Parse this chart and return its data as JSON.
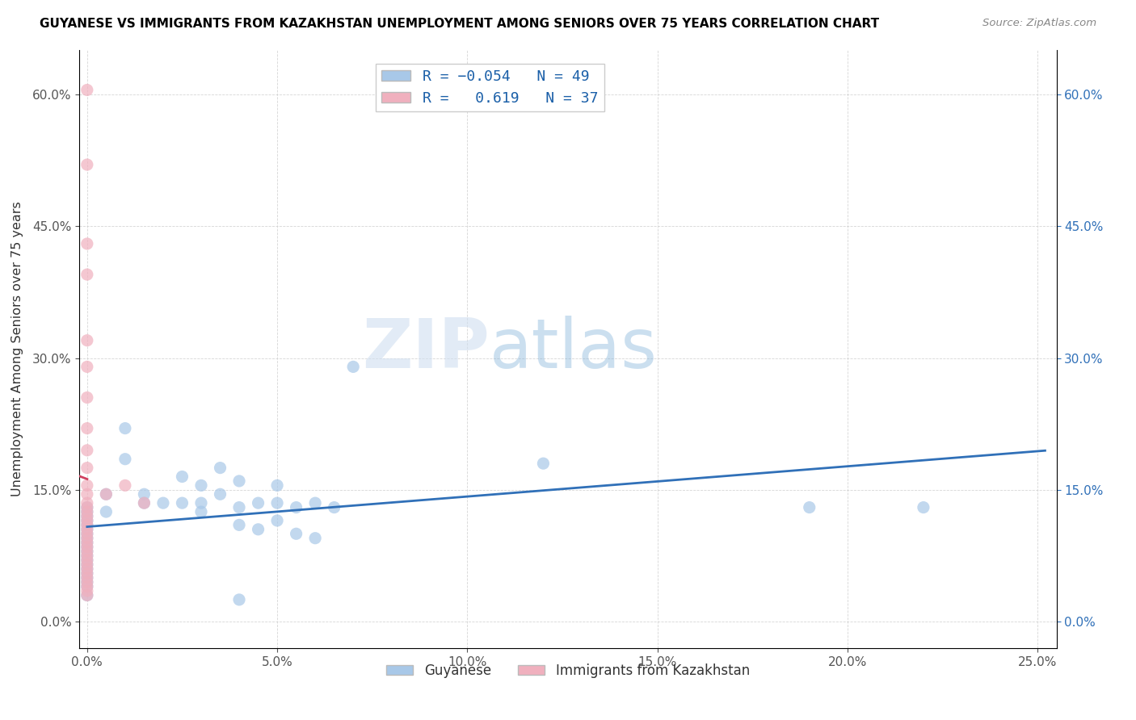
{
  "title": "GUYANESE VS IMMIGRANTS FROM KAZAKHSTAN UNEMPLOYMENT AMONG SENIORS OVER 75 YEARS CORRELATION CHART",
  "source": "Source: ZipAtlas.com",
  "ylabel": "Unemployment Among Seniors over 75 years",
  "xlim": [
    -0.002,
    0.255
  ],
  "ylim": [
    -0.03,
    0.65
  ],
  "xticks": [
    0.0,
    0.05,
    0.1,
    0.15,
    0.2,
    0.25
  ],
  "xticklabels": [
    "0.0%",
    "5.0%",
    "10.0%",
    "15.0%",
    "20.0%",
    "25.0%"
  ],
  "yticks": [
    0.0,
    0.15,
    0.3,
    0.45,
    0.6
  ],
  "yticklabels": [
    "0.0%",
    "15.0%",
    "30.0%",
    "45.0%",
    "60.0%"
  ],
  "legend_bottom": [
    "Guyanese",
    "Immigrants from Kazakhstan"
  ],
  "blue_color": "#a8c8e8",
  "pink_color": "#f0b0be",
  "blue_line_color": "#3070b8",
  "pink_line_color": "#d04060",
  "watermark_zip": "ZIP",
  "watermark_atlas": "atlas",
  "blue_scatter": [
    [
      0.0,
      0.13
    ],
    [
      0.0,
      0.125
    ],
    [
      0.0,
      0.12
    ],
    [
      0.0,
      0.115
    ],
    [
      0.0,
      0.11
    ],
    [
      0.0,
      0.105
    ],
    [
      0.0,
      0.1
    ],
    [
      0.0,
      0.095
    ],
    [
      0.0,
      0.09
    ],
    [
      0.0,
      0.085
    ],
    [
      0.0,
      0.08
    ],
    [
      0.0,
      0.075
    ],
    [
      0.0,
      0.07
    ],
    [
      0.0,
      0.065
    ],
    [
      0.0,
      0.06
    ],
    [
      0.0,
      0.055
    ],
    [
      0.0,
      0.05
    ],
    [
      0.0,
      0.045
    ],
    [
      0.0,
      0.04
    ],
    [
      0.0,
      0.03
    ],
    [
      0.005,
      0.145
    ],
    [
      0.005,
      0.125
    ],
    [
      0.01,
      0.22
    ],
    [
      0.01,
      0.185
    ],
    [
      0.015,
      0.145
    ],
    [
      0.015,
      0.135
    ],
    [
      0.02,
      0.135
    ],
    [
      0.025,
      0.165
    ],
    [
      0.025,
      0.135
    ],
    [
      0.03,
      0.155
    ],
    [
      0.03,
      0.135
    ],
    [
      0.03,
      0.125
    ],
    [
      0.035,
      0.175
    ],
    [
      0.035,
      0.145
    ],
    [
      0.04,
      0.16
    ],
    [
      0.04,
      0.13
    ],
    [
      0.04,
      0.11
    ],
    [
      0.045,
      0.135
    ],
    [
      0.045,
      0.105
    ],
    [
      0.05,
      0.155
    ],
    [
      0.05,
      0.135
    ],
    [
      0.05,
      0.115
    ],
    [
      0.055,
      0.13
    ],
    [
      0.055,
      0.1
    ],
    [
      0.06,
      0.135
    ],
    [
      0.06,
      0.095
    ],
    [
      0.065,
      0.13
    ],
    [
      0.07,
      0.29
    ],
    [
      0.12,
      0.18
    ],
    [
      0.19,
      0.13
    ],
    [
      0.22,
      0.13
    ],
    [
      0.04,
      0.025
    ]
  ],
  "pink_scatter": [
    [
      0.0,
      0.605
    ],
    [
      0.0,
      0.52
    ],
    [
      0.0,
      0.43
    ],
    [
      0.0,
      0.395
    ],
    [
      0.0,
      0.32
    ],
    [
      0.0,
      0.29
    ],
    [
      0.0,
      0.255
    ],
    [
      0.0,
      0.22
    ],
    [
      0.0,
      0.195
    ],
    [
      0.0,
      0.175
    ],
    [
      0.0,
      0.155
    ],
    [
      0.0,
      0.145
    ],
    [
      0.0,
      0.135
    ],
    [
      0.0,
      0.13
    ],
    [
      0.0,
      0.125
    ],
    [
      0.0,
      0.12
    ],
    [
      0.0,
      0.115
    ],
    [
      0.0,
      0.11
    ],
    [
      0.0,
      0.105
    ],
    [
      0.0,
      0.1
    ],
    [
      0.0,
      0.095
    ],
    [
      0.0,
      0.09
    ],
    [
      0.0,
      0.085
    ],
    [
      0.0,
      0.08
    ],
    [
      0.0,
      0.075
    ],
    [
      0.0,
      0.07
    ],
    [
      0.0,
      0.065
    ],
    [
      0.0,
      0.06
    ],
    [
      0.0,
      0.055
    ],
    [
      0.0,
      0.05
    ],
    [
      0.0,
      0.045
    ],
    [
      0.0,
      0.04
    ],
    [
      0.0,
      0.035
    ],
    [
      0.0,
      0.03
    ],
    [
      0.005,
      0.145
    ],
    [
      0.01,
      0.155
    ],
    [
      0.015,
      0.135
    ]
  ],
  "pink_line_x": [
    -0.003,
    0.018
  ],
  "pink_line_y_intercept": 0.12,
  "pink_slope": 28.0,
  "blue_R": -0.054,
  "pink_R": 0.619
}
